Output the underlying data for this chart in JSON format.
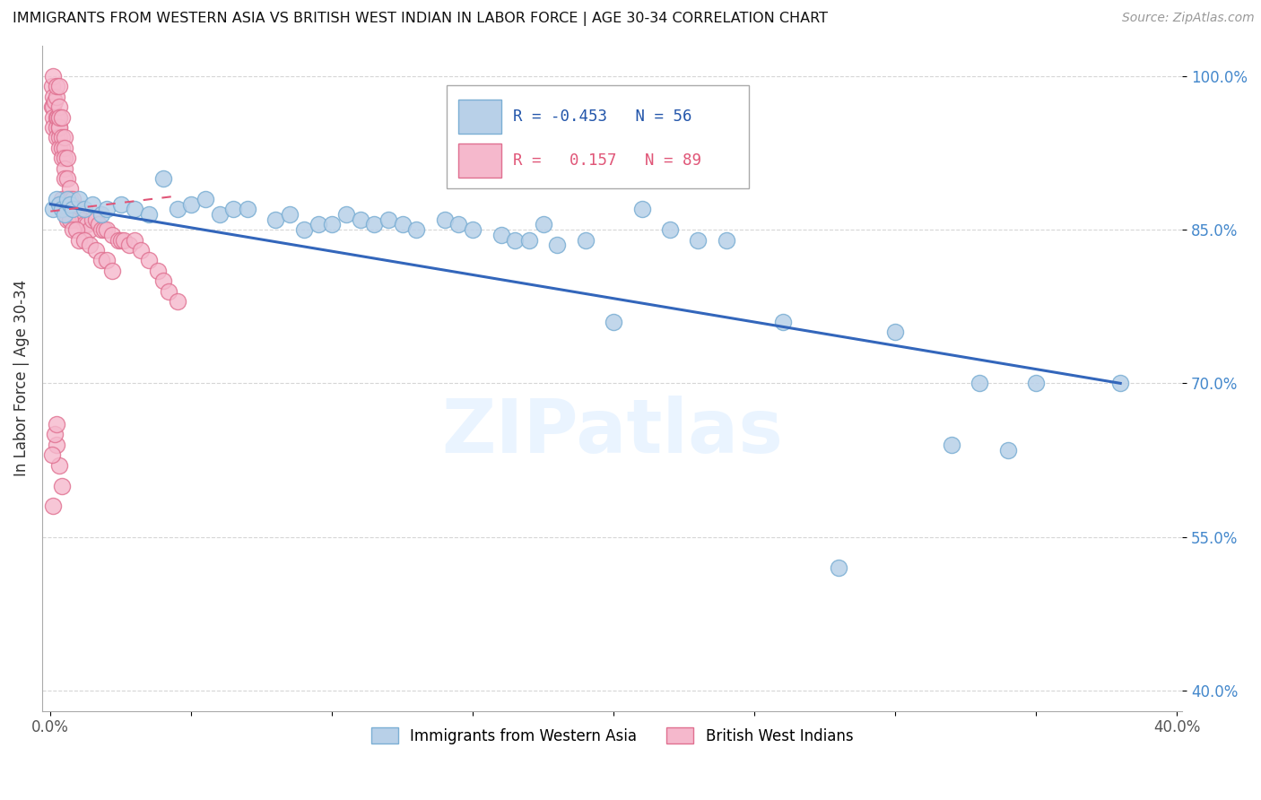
{
  "title": "IMMIGRANTS FROM WESTERN ASIA VS BRITISH WEST INDIAN IN LABOR FORCE | AGE 30-34 CORRELATION CHART",
  "source": "Source: ZipAtlas.com",
  "ylabel": "In Labor Force | Age 30-34",
  "watermark": "ZIPatlas",
  "legend_blue_r": "-0.453",
  "legend_blue_n": "56",
  "legend_pink_r": "0.157",
  "legend_pink_n": "89",
  "xlim": [
    -0.003,
    0.402
  ],
  "ylim": [
    0.38,
    1.03
  ],
  "xticks": [
    0.0,
    0.05,
    0.1,
    0.15,
    0.2,
    0.25,
    0.3,
    0.35,
    0.4
  ],
  "yticks": [
    0.4,
    0.55,
    0.7,
    0.85,
    1.0
  ],
  "ytick_labels": [
    "40.0%",
    "55.0%",
    "70.0%",
    "85.0%",
    "100.0%"
  ],
  "xtick_labels": [
    "0.0%",
    "",
    "",
    "",
    "",
    "",
    "",
    "",
    "40.0%"
  ],
  "blue_color": "#b8d0e8",
  "blue_edge": "#7bafd4",
  "blue_line_color": "#3366bb",
  "pink_color": "#f5b8cc",
  "pink_edge": "#e07090",
  "pink_line_color": "#e05577",
  "blue_scatter_x": [
    0.001,
    0.002,
    0.003,
    0.004,
    0.005,
    0.006,
    0.007,
    0.008,
    0.01,
    0.012,
    0.015,
    0.018,
    0.02,
    0.025,
    0.03,
    0.035,
    0.04,
    0.045,
    0.05,
    0.055,
    0.06,
    0.065,
    0.07,
    0.08,
    0.085,
    0.09,
    0.095,
    0.1,
    0.105,
    0.11,
    0.115,
    0.12,
    0.125,
    0.13,
    0.14,
    0.145,
    0.15,
    0.16,
    0.165,
    0.17,
    0.175,
    0.18,
    0.19,
    0.2,
    0.21,
    0.22,
    0.23,
    0.24,
    0.26,
    0.28,
    0.3,
    0.32,
    0.33,
    0.34,
    0.35,
    0.38
  ],
  "blue_scatter_y": [
    0.87,
    0.88,
    0.875,
    0.87,
    0.865,
    0.88,
    0.875,
    0.87,
    0.88,
    0.87,
    0.875,
    0.865,
    0.87,
    0.875,
    0.87,
    0.865,
    0.9,
    0.87,
    0.875,
    0.88,
    0.865,
    0.87,
    0.87,
    0.86,
    0.865,
    0.85,
    0.855,
    0.855,
    0.865,
    0.86,
    0.855,
    0.86,
    0.855,
    0.85,
    0.86,
    0.855,
    0.85,
    0.845,
    0.84,
    0.84,
    0.855,
    0.835,
    0.84,
    0.76,
    0.87,
    0.85,
    0.84,
    0.84,
    0.76,
    0.52,
    0.75,
    0.64,
    0.7,
    0.635,
    0.7,
    0.7
  ],
  "pink_scatter_x": [
    0.0005,
    0.0005,
    0.001,
    0.001,
    0.001,
    0.001,
    0.001,
    0.0015,
    0.002,
    0.002,
    0.002,
    0.002,
    0.002,
    0.0025,
    0.003,
    0.003,
    0.003,
    0.003,
    0.003,
    0.003,
    0.003,
    0.003,
    0.004,
    0.004,
    0.004,
    0.004,
    0.004,
    0.005,
    0.005,
    0.005,
    0.005,
    0.005,
    0.006,
    0.006,
    0.006,
    0.006,
    0.007,
    0.007,
    0.007,
    0.007,
    0.007,
    0.008,
    0.008,
    0.008,
    0.009,
    0.009,
    0.01,
    0.01,
    0.011,
    0.012,
    0.013,
    0.014,
    0.015,
    0.016,
    0.017,
    0.018,
    0.019,
    0.02,
    0.022,
    0.024,
    0.025,
    0.026,
    0.028,
    0.03,
    0.032,
    0.035,
    0.038,
    0.04,
    0.042,
    0.045,
    0.005,
    0.006,
    0.007,
    0.008,
    0.009,
    0.01,
    0.012,
    0.014,
    0.016,
    0.018,
    0.02,
    0.022,
    0.002,
    0.003,
    0.004,
    0.001,
    0.0005,
    0.0015,
    0.002
  ],
  "pink_scatter_y": [
    0.99,
    0.97,
    0.98,
    0.97,
    0.96,
    0.95,
    1.0,
    0.975,
    0.96,
    0.95,
    0.94,
    0.98,
    0.99,
    0.96,
    0.96,
    0.95,
    0.94,
    0.93,
    0.95,
    0.97,
    0.99,
    0.96,
    0.94,
    0.93,
    0.92,
    0.96,
    0.88,
    0.94,
    0.93,
    0.92,
    0.91,
    0.9,
    0.9,
    0.92,
    0.88,
    0.87,
    0.89,
    0.87,
    0.86,
    0.88,
    0.87,
    0.87,
    0.88,
    0.86,
    0.86,
    0.87,
    0.87,
    0.86,
    0.86,
    0.855,
    0.855,
    0.85,
    0.86,
    0.86,
    0.855,
    0.85,
    0.85,
    0.85,
    0.845,
    0.84,
    0.84,
    0.84,
    0.835,
    0.84,
    0.83,
    0.82,
    0.81,
    0.8,
    0.79,
    0.78,
    0.87,
    0.86,
    0.86,
    0.85,
    0.85,
    0.84,
    0.84,
    0.835,
    0.83,
    0.82,
    0.82,
    0.81,
    0.64,
    0.62,
    0.6,
    0.58,
    0.63,
    0.65,
    0.66
  ],
  "blue_line_x": [
    0.0,
    0.38
  ],
  "blue_line_y": [
    0.875,
    0.7
  ],
  "pink_line_x": [
    0.0,
    0.045
  ],
  "pink_line_y": [
    0.868,
    0.883
  ]
}
